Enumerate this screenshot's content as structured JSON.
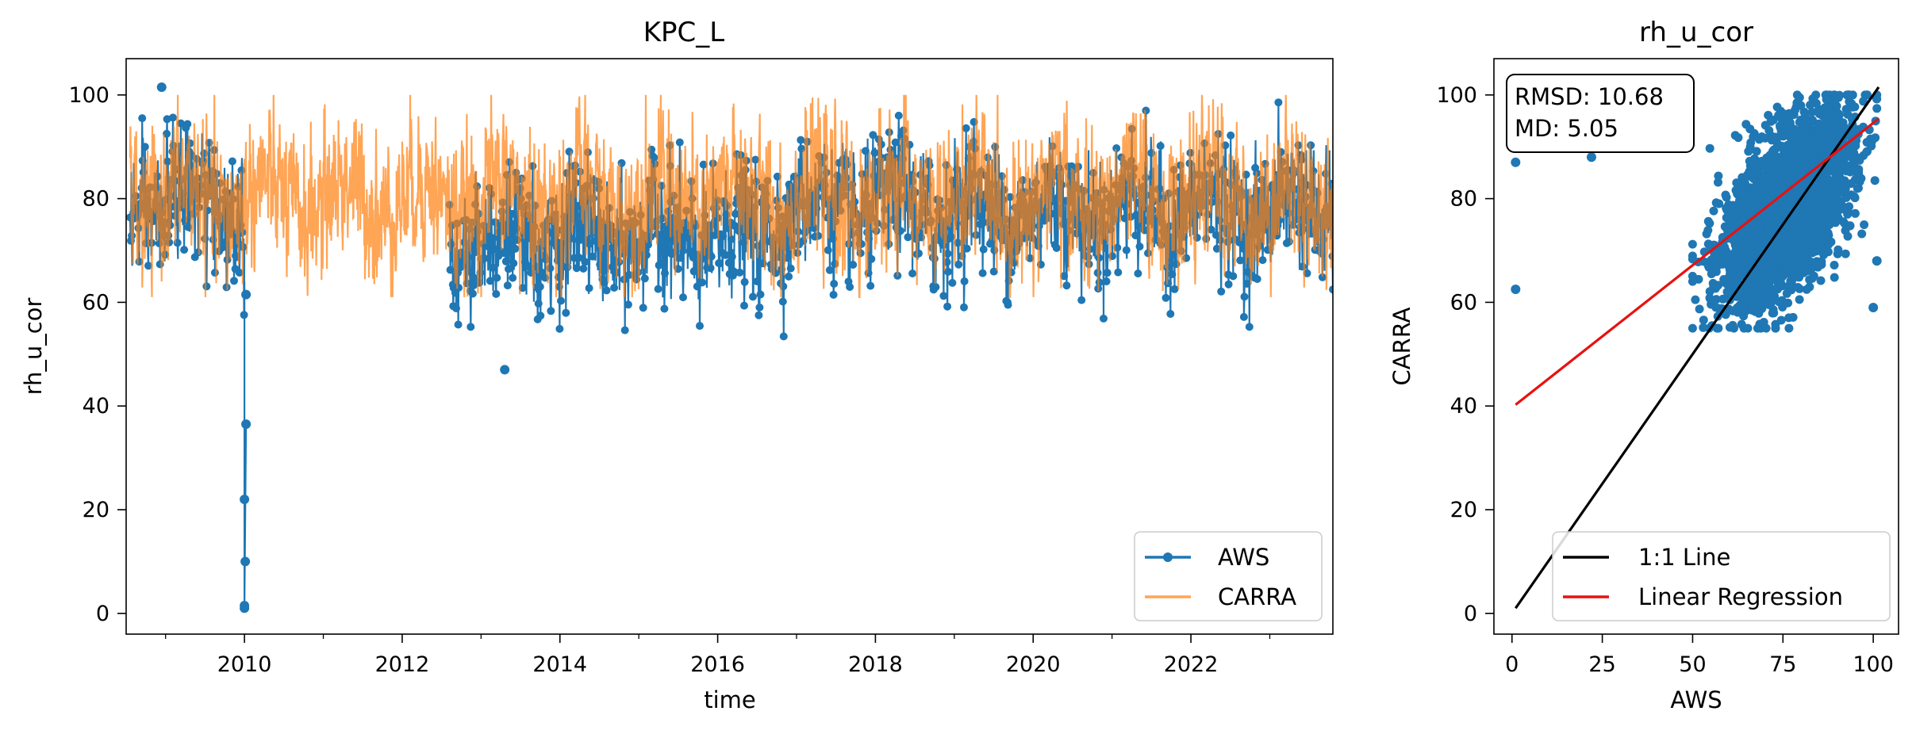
{
  "chart_data": [
    {
      "type": "line",
      "title": "KPC_L",
      "xlabel": "time",
      "ylabel": "rh_u_cor",
      "xlim": [
        2008.5,
        2023.8
      ],
      "ylim": [
        -4,
        107
      ],
      "x_tick_labels": [
        "2010",
        "2012",
        "2014",
        "2016",
        "2018",
        "2020",
        "2022"
      ],
      "y_tick_labels": [
        "0",
        "20",
        "40",
        "60",
        "80",
        "100"
      ],
      "legend": {
        "placement": "lower-right",
        "entries": [
          "AWS",
          "CARRA"
        ]
      },
      "colors": {
        "AWS": "#1f77b4",
        "CARRA": "#ff7f0e"
      },
      "series": [
        {
          "name": "AWS",
          "marker": "circle",
          "segments": [
            {
              "start": 2008.55,
              "end": 2010.0,
              "mean": 79,
              "spread": 9,
              "min": 50,
              "max": 101
            },
            {
              "start": 2012.6,
              "end": 2016.6,
              "mean": 72,
              "spread": 9,
              "min": 47,
              "max": 98
            },
            {
              "start": 2016.6,
              "end": 2023.8,
              "mean": 78,
              "spread": 9,
              "min": 49,
              "max": 101
            }
          ],
          "outliers": [
            {
              "x": 2010.02,
              "y": 61.5
            },
            {
              "x": 2010.02,
              "y": 36.5
            },
            {
              "x": 2010.0,
              "y": 22
            },
            {
              "x": 2010.01,
              "y": 10
            },
            {
              "x": 2010.0,
              "y": 1
            },
            {
              "x": 2010.0,
              "y": 1.5
            },
            {
              "x": 2013.3,
              "y": 47
            },
            {
              "x": 2008.95,
              "y": 101.5
            }
          ]
        },
        {
          "name": "CARRA",
          "marker": "none",
          "segments": [
            {
              "start": 2008.55,
              "end": 2023.8,
              "mean": 80,
              "spread": 10,
              "min": 61,
              "max": 100
            }
          ]
        }
      ]
    },
    {
      "type": "scatter",
      "title": "rh_u_cor",
      "xlabel": "AWS",
      "ylabel": "CARRA",
      "xlim": [
        -5,
        107
      ],
      "ylim": [
        -4,
        107
      ],
      "x_tick_labels": [
        "0",
        "25",
        "50",
        "75",
        "100"
      ],
      "y_tick_labels": [
        "0",
        "20",
        "40",
        "60",
        "80",
        "100"
      ],
      "stats": [
        "RMSD: 10.68",
        "MD: 5.05"
      ],
      "points_summary": {
        "x_range": [
          50,
          101
        ],
        "y_range": [
          55,
          100
        ],
        "description": "dense cloud of AWS vs CARRA daily values"
      },
      "outliers": [
        {
          "x": 1,
          "y": 87
        },
        {
          "x": 1,
          "y": 62.5
        },
        {
          "x": 22,
          "y": 88
        },
        {
          "x": 100,
          "y": 59
        },
        {
          "x": 101,
          "y": 68
        }
      ],
      "one_to_one": {
        "x": [
          1,
          101.5
        ],
        "y": [
          1,
          101.5
        ]
      },
      "regression": {
        "slope": 0.549,
        "intercept": 39.7,
        "x": [
          1,
          101.5
        ]
      },
      "legend": {
        "placement": "lower-right",
        "entries": [
          "1:1 Line",
          "Linear Regression"
        ]
      },
      "colors": {
        "points": "#1f77b4",
        "one_to_one": "#000000",
        "regression": "#e8110f"
      }
    }
  ]
}
